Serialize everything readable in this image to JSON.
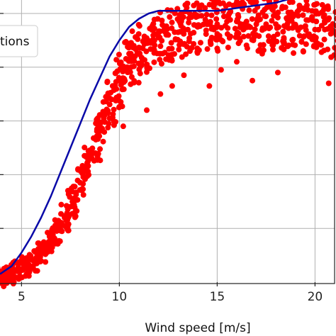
{
  "chart_data": {
    "type": "scatter",
    "title": "",
    "xlabel": "Wind speed [m/s]",
    "ylabel": "",
    "xlim": [
      3.9,
      21.0
    ],
    "ylim": [
      0.0,
      1.05
    ],
    "grid": true,
    "x_ticks": [
      5,
      10,
      15,
      20
    ],
    "x_tick_labels": [
      "5",
      "10",
      "15",
      "20"
    ],
    "y_ticks": [
      0.2,
      0.4,
      0.6,
      0.8,
      1.0
    ],
    "legend": {
      "placement": "top-left",
      "entries": [
        "tions"
      ]
    },
    "series": [
      {
        "kind": "line",
        "color": "#0a0aa8",
        "x": [
          3.9,
          4.5,
          5.0,
          5.5,
          6.0,
          6.5,
          7.0,
          7.5,
          8.0,
          8.5,
          9.0,
          9.5,
          10.0,
          10.5,
          11.0,
          11.5,
          12.0,
          12.5,
          13.0,
          14.0,
          15.0,
          16.0,
          17.0,
          18.0,
          19.0
        ],
        "y": [
          0.03,
          0.06,
          0.11,
          0.17,
          0.24,
          0.32,
          0.41,
          0.5,
          0.59,
          0.68,
          0.76,
          0.84,
          0.9,
          0.95,
          0.98,
          1.0,
          1.01,
          1.01,
          1.01,
          1.01,
          1.01,
          1.02,
          1.03,
          1.04,
          1.06
        ]
      },
      {
        "kind": "scatter",
        "color": "#ff0000",
        "x": [
          4.0,
          4.4,
          4.8,
          5.2,
          5.6,
          6.0,
          6.4,
          6.8,
          7.2,
          7.6,
          8.0,
          8.4,
          8.8,
          9.2,
          9.6,
          10.0,
          10.4,
          10.8,
          11.2,
          11.6,
          12.0,
          12.5,
          13.0,
          13.5,
          14.0,
          14.5,
          15.0,
          15.5,
          16.0,
          16.5,
          17.0,
          17.5,
          18.0,
          18.5,
          19.0,
          19.5,
          20.0,
          20.5,
          21.0
        ],
        "y": [
          0.02,
          0.03,
          0.04,
          0.06,
          0.08,
          0.11,
          0.15,
          0.19,
          0.24,
          0.3,
          0.37,
          0.45,
          0.53,
          0.61,
          0.68,
          0.75,
          0.8,
          0.84,
          0.87,
          0.89,
          0.91,
          0.92,
          0.93,
          0.94,
          0.95,
          0.96,
          0.96,
          0.97,
          0.97,
          0.97,
          0.96,
          0.96,
          0.96,
          0.95,
          0.95,
          0.95,
          0.94,
          0.94,
          0.93
        ]
      },
      {
        "kind": "scatter-outliers",
        "color": "#ff0000",
        "x": [
          10.2,
          11.4,
          12.1,
          12.7,
          13.3,
          14.6,
          15.2,
          16.0,
          16.8,
          17.3,
          18.1,
          18.6,
          19.4,
          20.0,
          20.7
        ],
        "y": [
          0.58,
          0.64,
          0.7,
          0.73,
          0.77,
          0.73,
          0.79,
          0.82,
          0.75,
          0.85,
          0.78,
          0.88,
          0.86,
          0.9,
          0.74
        ]
      }
    ]
  }
}
